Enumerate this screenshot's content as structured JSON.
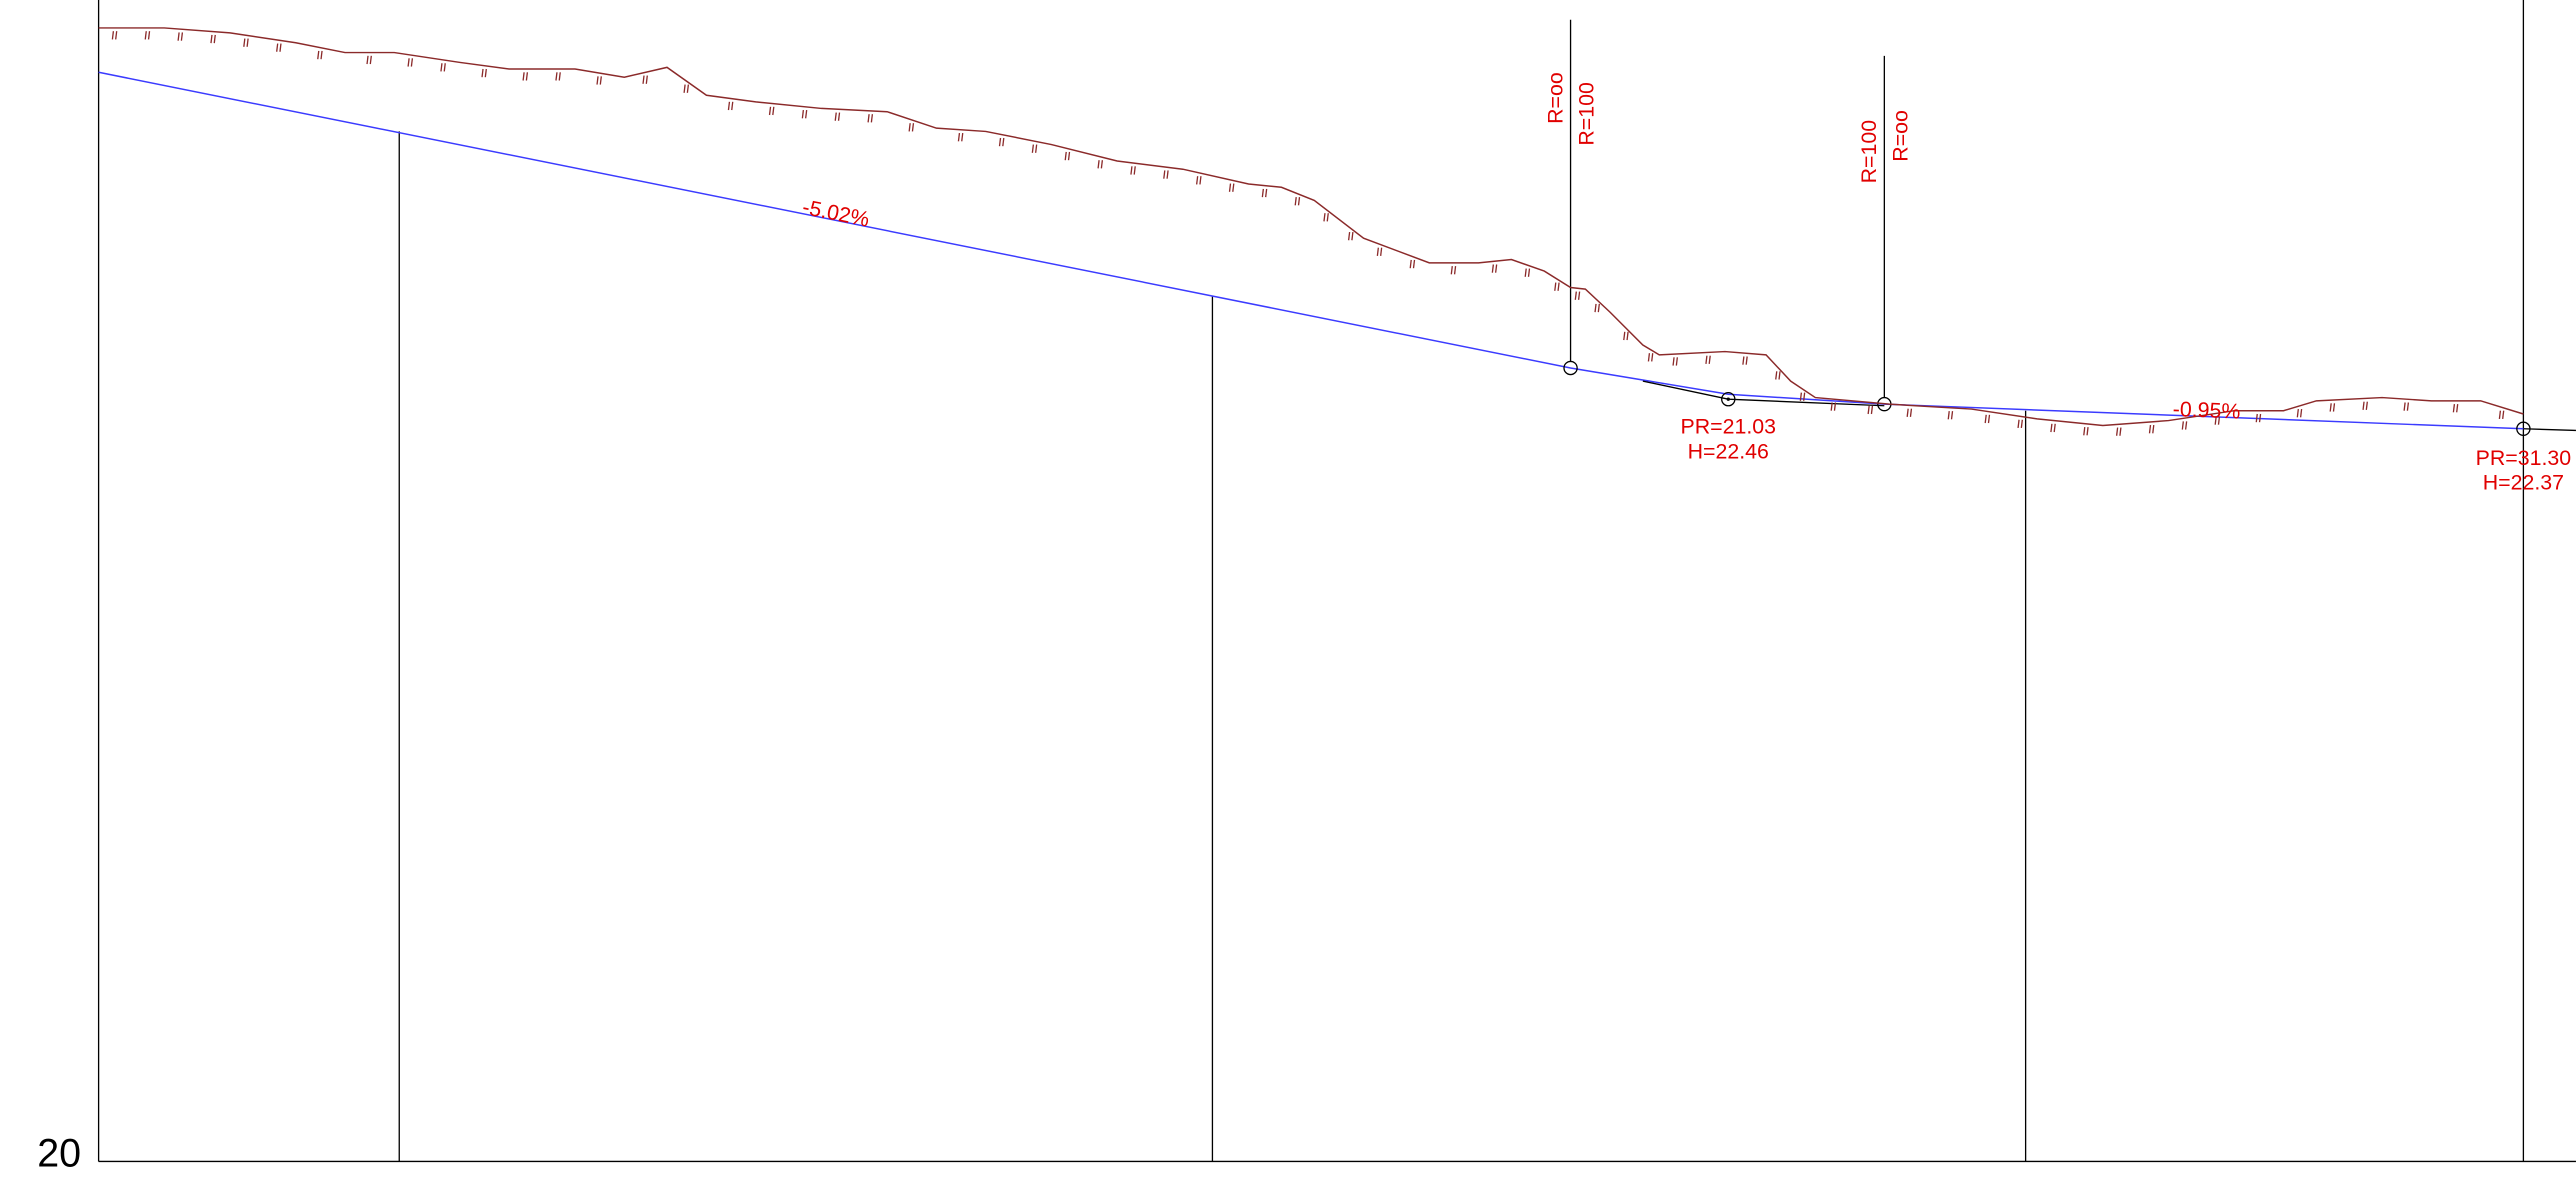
{
  "axis": {
    "label": "20"
  },
  "grades": [
    "-5.02%",
    "-0.95%"
  ],
  "points": [
    {
      "pr": "PR=21.03",
      "h": "H=22.46"
    },
    {
      "pr": "PR=31.30",
      "h": "H=22.37"
    }
  ],
  "curves": [
    {
      "r_a": "R=oo",
      "r_b": "R=100"
    },
    {
      "r_a": "R=100",
      "r_b": "R=oo"
    }
  ]
}
